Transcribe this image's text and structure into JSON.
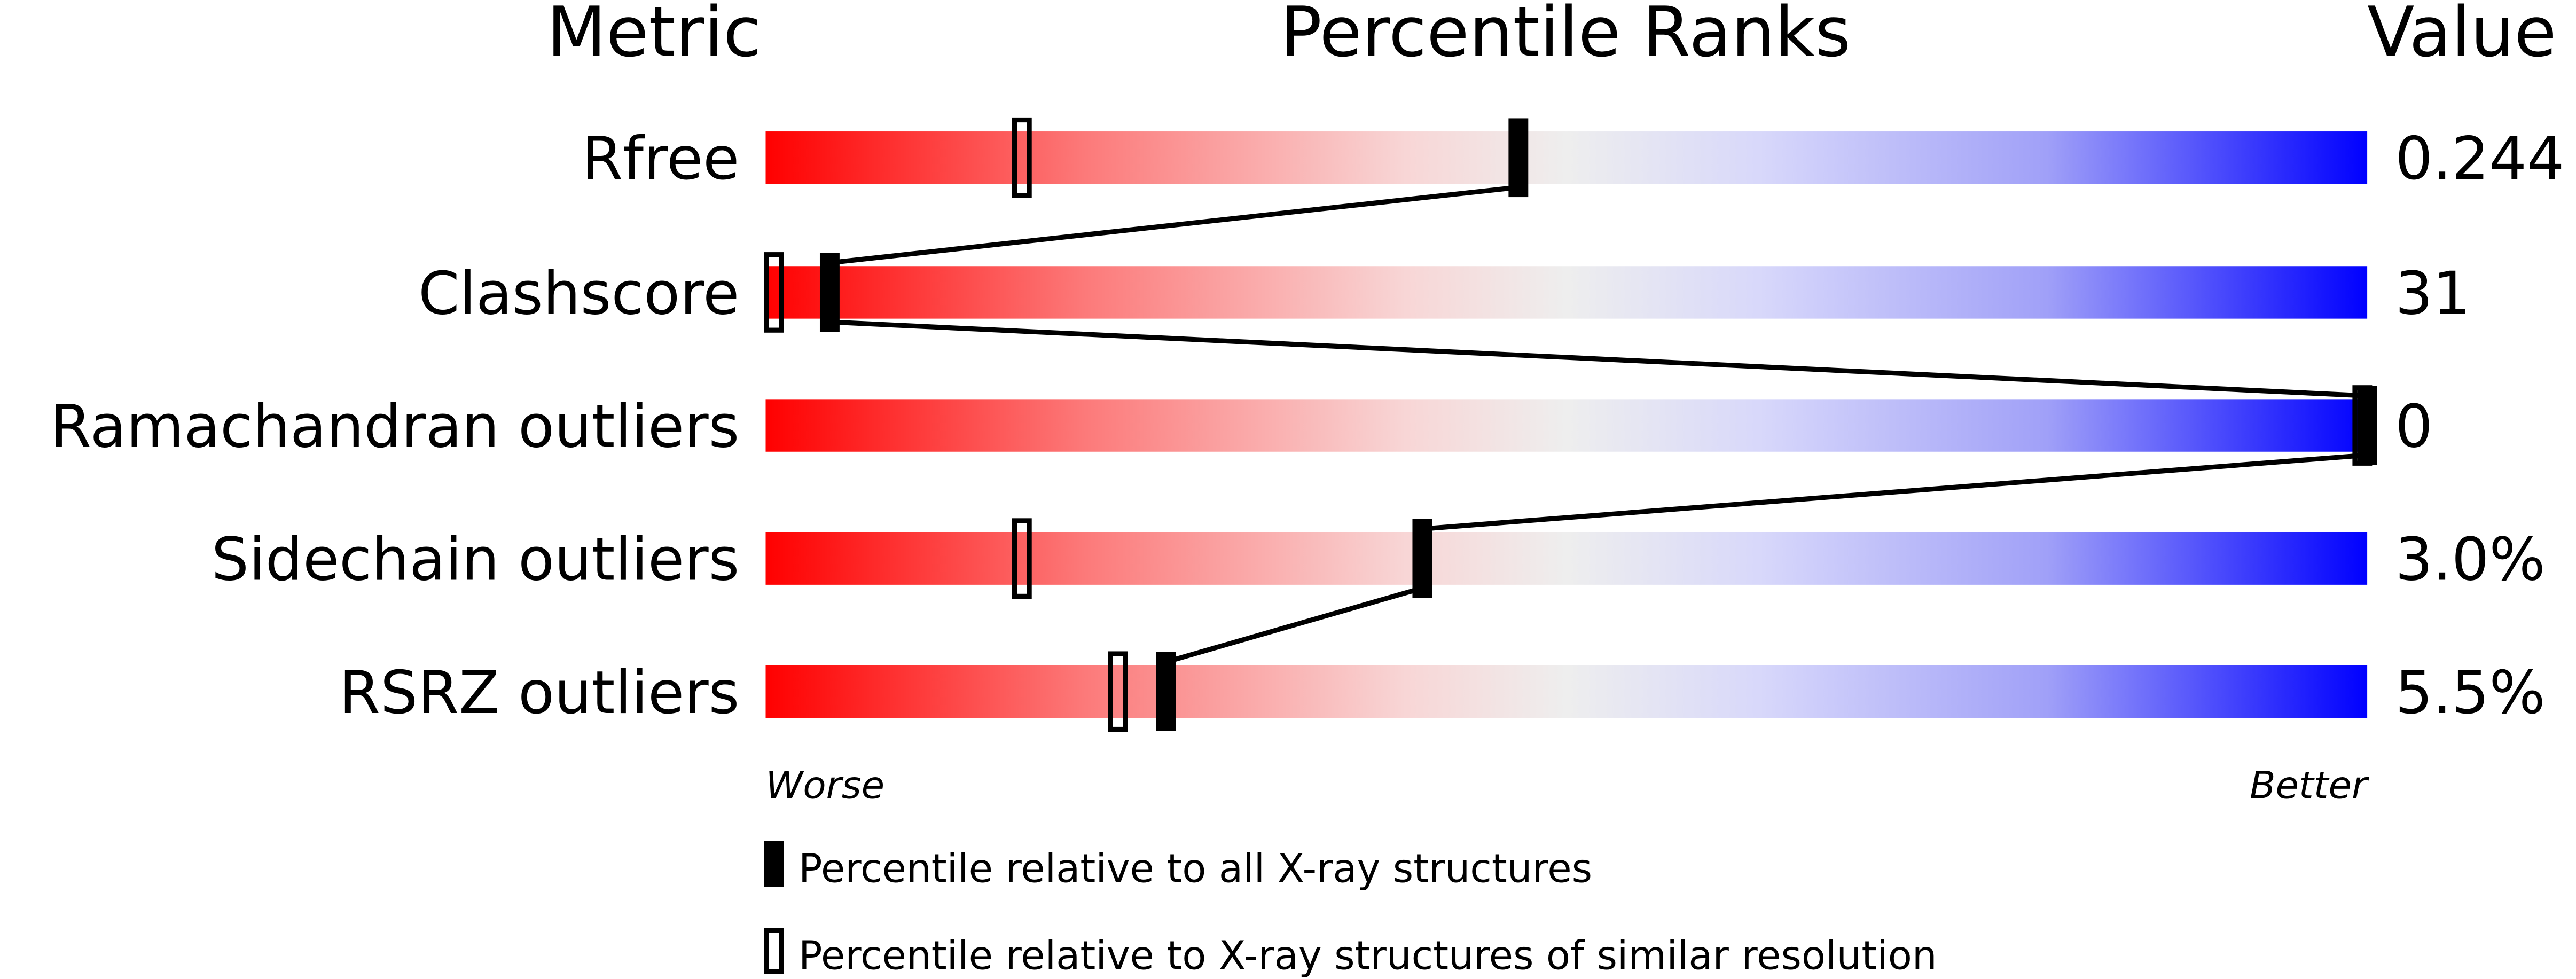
{
  "chart_data": {
    "type": "percentile-ranks",
    "headers": {
      "metric": "Metric",
      "ranks": "Percentile Ranks",
      "value": "Value"
    },
    "xlim": [
      0,
      100
    ],
    "metrics": [
      {
        "name": "Rfree",
        "value": "0.244",
        "percentile_all": 47,
        "percentile_similar": 16
      },
      {
        "name": "Clashscore",
        "value": "31",
        "percentile_all": 4,
        "percentile_similar": 0
      },
      {
        "name": "Ramachandran outliers",
        "value": "0",
        "percentile_all": 100,
        "percentile_similar": 100
      },
      {
        "name": "Sidechain outliers",
        "value": "3.0%",
        "percentile_all": 41,
        "percentile_similar": 16
      },
      {
        "name": "RSRZ outliers",
        "value": "5.5%",
        "percentile_all": 25,
        "percentile_similar": 22
      }
    ],
    "axis_labels": {
      "worse": "Worse",
      "better": "Better"
    },
    "legend": [
      {
        "marker": "filled",
        "label": "Percentile relative to all X-ray structures"
      },
      {
        "marker": "open",
        "label": "Percentile relative to X-ray structures of similar resolution"
      }
    ],
    "colors": {
      "worse": "#ff0000",
      "middle": "#eeeeee",
      "better": "#0000ff"
    }
  }
}
